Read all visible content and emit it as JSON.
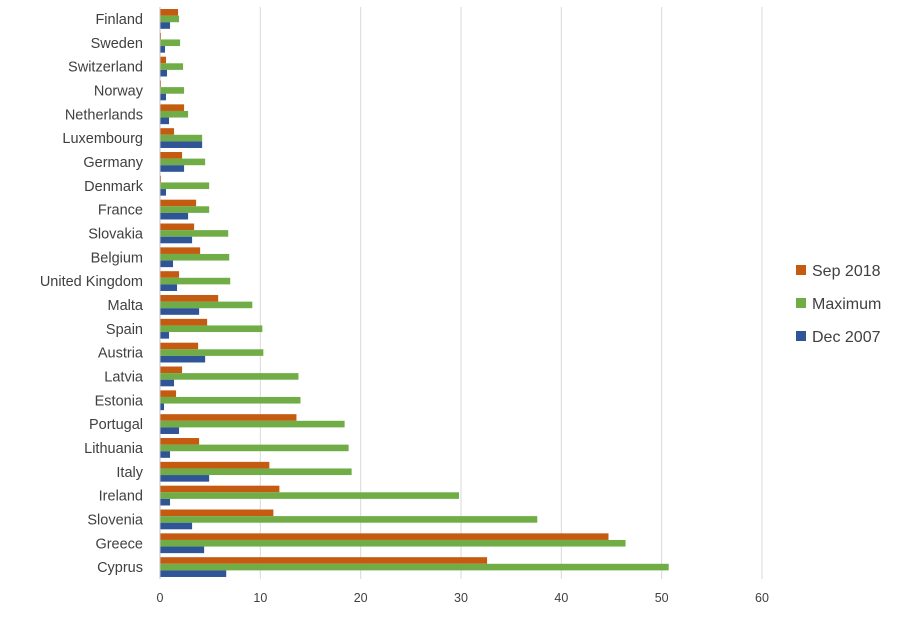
{
  "chart_data": {
    "type": "bar",
    "orientation": "horizontal",
    "categories": [
      "Finland",
      "Sweden",
      "Switzerland",
      "Norway",
      "Netherlands",
      "Luxembourg",
      "Germany",
      "Denmark",
      "France",
      "Slovakia",
      "Belgium",
      "United Kingdom",
      "Malta",
      "Spain",
      "Austria",
      "Latvia",
      "Estonia",
      "Portugal",
      "Lithuania",
      "Italy",
      "Ireland",
      "Slovenia",
      "Greece",
      "Cyprus"
    ],
    "series": [
      {
        "name": "Sep 2018",
        "color": "#c55a11",
        "values": [
          1.8,
          0.1,
          0.6,
          0.1,
          2.4,
          1.4,
          2.2,
          0.1,
          3.6,
          3.4,
          4.0,
          1.9,
          5.8,
          4.7,
          3.8,
          2.2,
          1.6,
          13.6,
          3.9,
          10.9,
          11.9,
          11.3,
          44.7,
          32.6
        ]
      },
      {
        "name": "Maximum",
        "color": "#70ad47",
        "values": [
          1.9,
          2.0,
          2.3,
          2.4,
          2.8,
          4.2,
          4.5,
          4.9,
          4.9,
          6.8,
          6.9,
          7.0,
          9.2,
          10.2,
          10.3,
          13.8,
          14.0,
          18.4,
          18.8,
          19.1,
          29.8,
          37.6,
          46.4,
          50.7
        ]
      },
      {
        "name": "Dec 2007",
        "color": "#2f5597",
        "values": [
          1.0,
          0.5,
          0.7,
          0.6,
          0.9,
          4.2,
          2.4,
          0.6,
          2.8,
          3.2,
          1.3,
          1.7,
          3.9,
          0.9,
          4.5,
          1.4,
          0.4,
          1.9,
          1.0,
          4.9,
          1.0,
          3.2,
          4.4,
          6.6
        ]
      }
    ],
    "xlim": [
      0,
      60
    ],
    "xticks": [
      0,
      10,
      20,
      30,
      40,
      50,
      60
    ],
    "title": "",
    "xlabel": "",
    "ylabel": "",
    "grid": "vertical gridlines on",
    "legend_position": "right"
  }
}
